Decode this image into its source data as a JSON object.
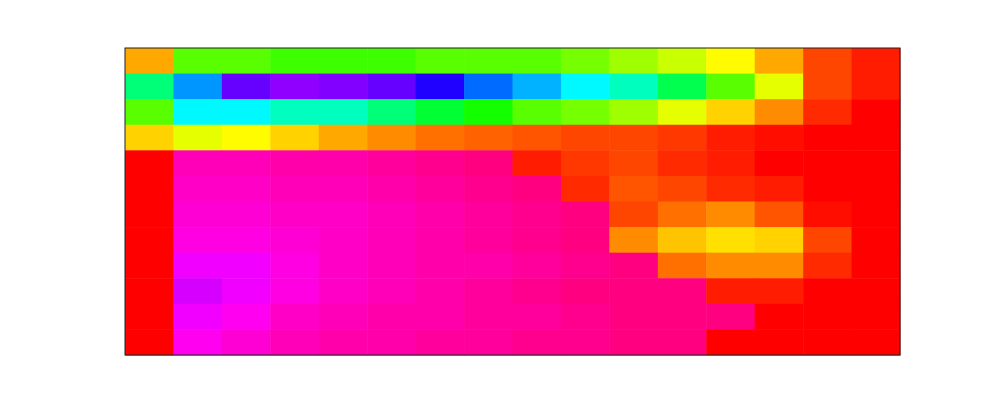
{
  "chart_data": {
    "type": "heatmap",
    "tick_labels": false,
    "color_range": [
      0,
      1
    ],
    "cells": [
      [
        0.12,
        0.3,
        0.3,
        0.32,
        0.32,
        0.32,
        0.3,
        0.3,
        0.3,
        0.28,
        0.25,
        0.22,
        0.18,
        0.12,
        0.05,
        0.02
      ],
      [
        0.45,
        0.62,
        0.8,
        0.83,
        0.82,
        0.8,
        0.75,
        0.65,
        0.6,
        0.55,
        0.5,
        0.42,
        0.3,
        0.2,
        0.05,
        0.02
      ],
      [
        0.3,
        0.55,
        0.55,
        0.5,
        0.5,
        0.45,
        0.4,
        0.35,
        0.3,
        0.28,
        0.25,
        0.2,
        0.15,
        0.1,
        0.03,
        0.0
      ],
      [
        0.15,
        0.2,
        0.18,
        0.15,
        0.12,
        0.1,
        0.08,
        0.07,
        0.06,
        0.05,
        0.05,
        0.04,
        0.02,
        0.01,
        0.0,
        0.0
      ],
      [
        0.0,
        0.96,
        0.96,
        0.97,
        0.97,
        0.98,
        0.99,
        1.0,
        0.02,
        0.04,
        0.05,
        0.03,
        0.02,
        0.0,
        0.0,
        0.0
      ],
      [
        0.0,
        0.95,
        0.95,
        0.96,
        0.96,
        0.97,
        0.98,
        0.99,
        1.0,
        0.03,
        0.06,
        0.05,
        0.03,
        0.02,
        0.0,
        0.0
      ],
      [
        0.0,
        0.94,
        0.94,
        0.95,
        0.95,
        0.96,
        0.97,
        0.98,
        0.99,
        1.0,
        0.05,
        0.08,
        0.1,
        0.06,
        0.01,
        0.0
      ],
      [
        0.0,
        0.93,
        0.93,
        0.94,
        0.95,
        0.96,
        0.97,
        0.98,
        0.99,
        1.0,
        0.1,
        0.14,
        0.16,
        0.15,
        0.05,
        0.0
      ],
      [
        0.0,
        0.9,
        0.9,
        0.93,
        0.95,
        0.96,
        0.97,
        0.97,
        0.98,
        0.99,
        1.0,
        0.08,
        0.1,
        0.1,
        0.03,
        0.0
      ],
      [
        0.0,
        0.88,
        0.9,
        0.93,
        0.95,
        0.96,
        0.97,
        0.98,
        0.99,
        1.0,
        1.0,
        1.0,
        0.02,
        0.02,
        0.0,
        0.0
      ],
      [
        0.0,
        0.9,
        0.92,
        0.95,
        0.96,
        0.97,
        0.97,
        0.98,
        0.98,
        0.99,
        1.0,
        1.0,
        1.0,
        0.0,
        0.0,
        0.0
      ],
      [
        0.0,
        0.92,
        0.94,
        0.96,
        0.97,
        0.97,
        0.98,
        0.98,
        0.99,
        0.99,
        1.0,
        1.0,
        0.0,
        0.0,
        0.0,
        0.0
      ]
    ]
  }
}
